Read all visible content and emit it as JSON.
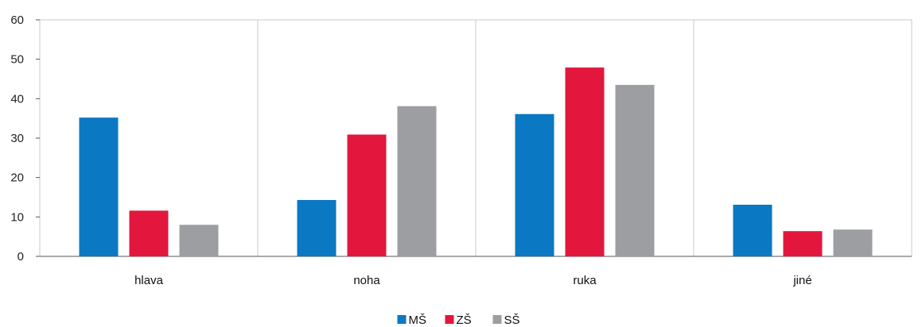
{
  "chart_data": {
    "type": "bar",
    "categories": [
      "hlava",
      "noha",
      "ruka",
      "jiné"
    ],
    "series": [
      {
        "name": "MŠ",
        "color": "#0a78c2",
        "values": [
          35.2,
          14.3,
          36.1,
          13.1
        ]
      },
      {
        "name": "ZŠ",
        "color": "#e3173e",
        "values": [
          11.6,
          30.9,
          47.9,
          6.4
        ]
      },
      {
        "name": "SŠ",
        "color": "#9d9ea2",
        "values": [
          8.0,
          38.1,
          43.5,
          6.8
        ]
      }
    ],
    "yticks": [
      "0",
      "10",
      "20",
      "30",
      "40",
      "50",
      "60"
    ],
    "ylim": [
      0,
      60
    ],
    "grid": "vertical separators between categories",
    "legend_position": "bottom-center"
  }
}
